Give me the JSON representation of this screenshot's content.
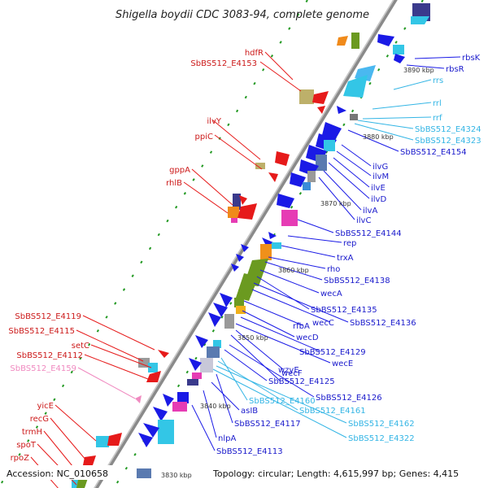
{
  "title": "Shigella boydii CDC 3083-94, complete genome",
  "accession": "Accession: NC_010658",
  "topology": "Topology: circular; Length: 4,615,997 bp; Genes: 4,415",
  "colors": {
    "backbone": "#9a9a9a",
    "blue_gene": "#1a1ae6",
    "red_gene": "#e61a1a",
    "cyan_gene": "#33c6e6",
    "rrna": "#4ab8f0",
    "rrna_label": "#33b5e5",
    "pink_label": "#f08ac0",
    "tick": "#229922",
    "label_blue": "#1a1acc",
    "label_red": "#cc1a1a"
  },
  "ticks": [
    "3890 kbp",
    "3880 kbp",
    "3870 kbp",
    "3860 kbp",
    "3850 kbp",
    "3840 kbp",
    "3830 kbp"
  ],
  "labels_left": [
    {
      "text": "hdfR",
      "color": "red"
    },
    {
      "text": "SbBS512_E4153",
      "color": "red"
    },
    {
      "text": "ilvY",
      "color": "red"
    },
    {
      "text": "ppiC",
      "color": "red"
    },
    {
      "text": "gppA",
      "color": "red"
    },
    {
      "text": "rhlB",
      "color": "red"
    },
    {
      "text": "SbBS512_E4119",
      "color": "red"
    },
    {
      "text": "SbBS512_E4115",
      "color": "red"
    },
    {
      "text": "setC",
      "color": "red"
    },
    {
      "text": "SbBS512_E4112",
      "color": "red"
    },
    {
      "text": "SbBS512_E4159",
      "color": "pink"
    },
    {
      "text": "yicE",
      "color": "red"
    },
    {
      "text": "recG",
      "color": "red"
    },
    {
      "text": "trmH",
      "color": "red"
    },
    {
      "text": "spoT",
      "color": "red"
    },
    {
      "text": "rpoZ",
      "color": "red"
    }
  ],
  "labels_right": [
    {
      "text": "rbsK",
      "color": "blue"
    },
    {
      "text": "rbsR",
      "color": "blue"
    },
    {
      "text": "rrs",
      "color": "rrna"
    },
    {
      "text": "rrl",
      "color": "rrna"
    },
    {
      "text": "rrf",
      "color": "rrna"
    },
    {
      "text": "SbBS512_E4324",
      "color": "rrna"
    },
    {
      "text": "SbBS512_E4323",
      "color": "rrna"
    },
    {
      "text": "SbBS512_E4154",
      "color": "blue"
    },
    {
      "text": "ilvG",
      "color": "blue"
    },
    {
      "text": "ilvM",
      "color": "blue"
    },
    {
      "text": "ilvE",
      "color": "blue"
    },
    {
      "text": "ilvD",
      "color": "blue"
    },
    {
      "text": "ilvA",
      "color": "blue"
    },
    {
      "text": "ilvC",
      "color": "blue"
    },
    {
      "text": "SbBS512_E4144",
      "color": "blue"
    },
    {
      "text": "rep",
      "color": "blue"
    },
    {
      "text": "trxA",
      "color": "blue"
    },
    {
      "text": "rho",
      "color": "blue"
    },
    {
      "text": "SbBS512_E4138",
      "color": "blue"
    },
    {
      "text": "wecA",
      "color": "blue"
    },
    {
      "text": "SbBS512_E4135",
      "color": "blue"
    },
    {
      "text": "wecC",
      "color": "blue"
    },
    {
      "text": "SbBS512_E4136",
      "color": "blue"
    },
    {
      "text": "rfbA",
      "color": "blue"
    },
    {
      "text": "wecD",
      "color": "blue"
    },
    {
      "text": "SbBS512_E4129",
      "color": "blue"
    },
    {
      "text": "wecE",
      "color": "blue"
    },
    {
      "text": "wzyE",
      "color": "blue"
    },
    {
      "text": "wecF",
      "color": "blue"
    },
    {
      "text": "SbBS512_E4125",
      "color": "blue"
    },
    {
      "text": "SbBS512_E4126",
      "color": "blue"
    },
    {
      "text": "SbBS512_E4160",
      "color": "rrna"
    },
    {
      "text": "asIB",
      "color": "blue"
    },
    {
      "text": "SbBS512_E4161",
      "color": "rrna"
    },
    {
      "text": "SbBS512_E4117",
      "color": "blue"
    },
    {
      "text": "SbBS512_E4162",
      "color": "rrna"
    },
    {
      "text": "nlpA",
      "color": "blue"
    },
    {
      "text": "SbBS512_E4322",
      "color": "rrna"
    },
    {
      "text": "SbBS512_E4113",
      "color": "blue"
    }
  ]
}
